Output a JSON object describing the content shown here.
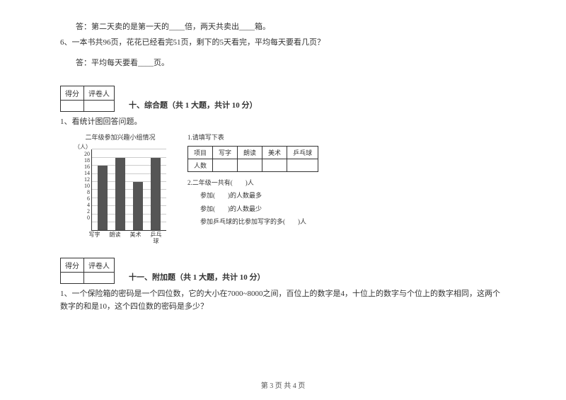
{
  "top": {
    "q5_answer": "答：第二天卖的是第一天的____倍，两天共卖出____箱。",
    "q6": "6、一本书共96页，花花已经看完51页，剩下的5天看完，平均每天要看几页？",
    "q6_answer": "答：平均每天要看____页。"
  },
  "scorebox": {
    "c1": "得分",
    "c2": "评卷人"
  },
  "section10": {
    "title": "十、综合题（共 1 大题，共计 10 分）",
    "q1": "1、看统计图回答问题。",
    "chart_title": "二年级参加兴趣小组情况",
    "y_unit": "（人）",
    "y_ticks": [
      "20",
      "18",
      "16",
      "14",
      "12",
      "10",
      "8",
      "6",
      "4",
      "2",
      "0"
    ],
    "y_max": 20,
    "bars": [
      {
        "label": "写字",
        "value": 16,
        "color": "#555555"
      },
      {
        "label": "朗读",
        "value": 18,
        "color": "#555555"
      },
      {
        "label": "美术",
        "value": 12,
        "color": "#555555"
      },
      {
        "label": "乒乓球",
        "value": 18,
        "color": "#555555"
      }
    ],
    "grid_color": "#cccccc",
    "right": {
      "t1": "1.请填写下表",
      "table_headers": [
        "项目",
        "写字",
        "朗读",
        "美术",
        "乒乓球"
      ],
      "row_label": "人数",
      "line2": "2.二年级一共有(　　)人",
      "line3": "参加(　　)的人数最多",
      "line4": "参加(　　)的人数最少",
      "line5": "参加乒乓球的比参加写字的多(　　)人"
    }
  },
  "section11": {
    "title": "十一、附加题（共 1 大题，共计 10 分）",
    "q1": "1、一个保险箱的密码是一个四位数，它的大小在7000~8000之间，百位上的数字是4，十位上的数字与个位上的数字相同，这两个数字的和是10，这个四位数的密码是多少？"
  },
  "footer": "第 3 页 共 4 页"
}
